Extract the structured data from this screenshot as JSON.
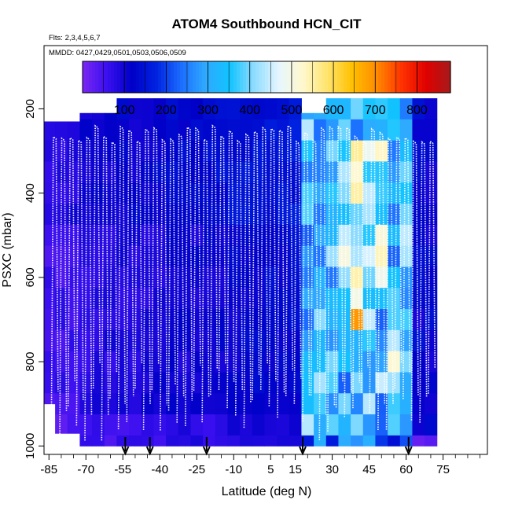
{
  "chart_data": {
    "type": "heatmap",
    "title": "ATOM4 Southbound HCN_CIT",
    "flights_label": "Flts: 2,3,4,5,6,7",
    "dates_label": "MMDD: 0427,0429,0501,0503,0506,0509",
    "xlabel": "Latitude (deg N)",
    "ylabel": "PSXC (mbar)",
    "xlim": [
      -87,
      93
    ],
    "ylim": [
      1020,
      50
    ],
    "x_ticks": [
      -85,
      -70,
      -55,
      -40,
      -25,
      -10,
      5,
      15,
      30,
      45,
      60,
      75
    ],
    "x_tick_labels": [
      "-85",
      "-70",
      "-55",
      "-40",
      "-25",
      "-10",
      "5",
      "15",
      "30",
      "45",
      "60",
      "75"
    ],
    "x_minor_ticks": [
      -80,
      -75,
      -65,
      -60,
      -50,
      -45,
      -35,
      -30,
      -20,
      -15,
      -5,
      0,
      10,
      20,
      25,
      35,
      40,
      50,
      55,
      65,
      70,
      80,
      85,
      90
    ],
    "y_ticks": [
      200,
      400,
      600,
      800,
      1000
    ],
    "y_tick_labels": [
      "200",
      "400",
      "600",
      "800",
      "1000"
    ],
    "colorbar": {
      "range": [
        0,
        880
      ],
      "tick_values": [
        100,
        200,
        300,
        400,
        500,
        600,
        700,
        800
      ],
      "tick_labels": [
        "100",
        "200",
        "300",
        "400",
        "500",
        "600",
        "700",
        "800"
      ],
      "colors": [
        "#7a28f2",
        "#3a0ff0",
        "#0000c8",
        "#0022e0",
        "#1b6cff",
        "#2fa9ff",
        "#11c3ff",
        "#8fdcff",
        "#e6f6ff",
        "#fff8cc",
        "#ffe36a",
        "#ffc000",
        "#ff8a00",
        "#ff3300",
        "#e00000",
        "#a61a1a"
      ]
    },
    "lat_bins": [
      -85,
      -80,
      -75,
      -70,
      -65,
      -60,
      -55,
      -50,
      -45,
      -40,
      -35,
      -30,
      -25,
      -20,
      -15,
      -10,
      -5,
      0,
      5,
      10,
      15,
      20,
      25,
      30,
      35,
      40,
      45,
      50,
      55,
      60,
      65,
      70
    ],
    "pressure_bins": [
      200,
      250,
      300,
      350,
      400,
      450,
      500,
      550,
      600,
      650,
      700,
      750,
      800,
      850,
      900,
      950,
      1000
    ],
    "profile_markers_lat": [
      -54,
      -44,
      -21,
      18,
      61
    ],
    "note": "Gridded HCN mixing ratio (pptv) by latitude and pressure; low values (~60-120) in Southern Hemisphere, elevated values (~250-600, peak ~700 near 40N, 700 mbar) in Northern mid-latitudes."
  }
}
